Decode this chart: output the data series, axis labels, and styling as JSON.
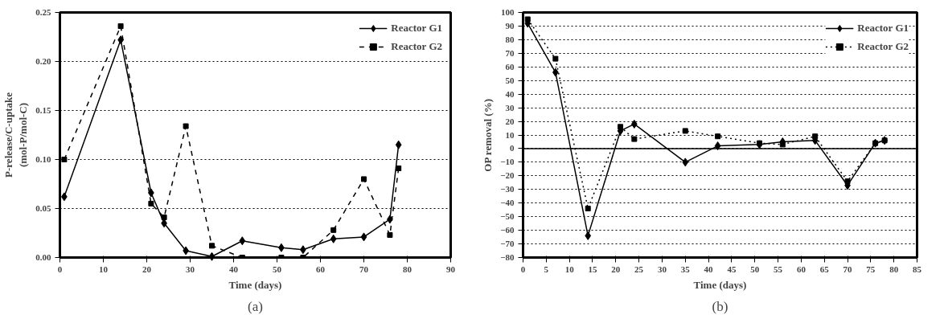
{
  "chart_data": [
    {
      "type": "line",
      "xlabel": "Time (days)",
      "ylabel": "P-release/C-uptake\n(mol-P/mol-C)",
      "annotations": [
        "(a)"
      ],
      "xlim": [
        0,
        90
      ],
      "xticks": [
        0,
        10,
        20,
        30,
        40,
        50,
        60,
        70,
        80,
        90
      ],
      "ylim": [
        0,
        0.25
      ],
      "yticks": [
        {
          "value": 0,
          "label": "0.00"
        },
        {
          "value": 0.05,
          "label": "0.05"
        },
        {
          "value": 0.1,
          "label": "0.10"
        },
        {
          "value": 0.15,
          "label": "0.15"
        },
        {
          "value": 0.2,
          "label": "0.20"
        },
        {
          "value": 0.25,
          "label": "0.25"
        }
      ],
      "grid": "y",
      "legend": "top right",
      "x": [
        1,
        14,
        21,
        24,
        29,
        35,
        42,
        51,
        56,
        63,
        70,
        76,
        78
      ],
      "series": [
        {
          "name": "Reactor G1",
          "color": "#000000",
          "marker": "diamond",
          "line_style": "solid",
          "values": [
            0.062,
            0.222,
            0.066,
            0.035,
            0.007,
            0.001,
            0.017,
            0.01,
            0.008,
            0.019,
            0.021,
            0.039,
            0.115
          ]
        },
        {
          "name": "Reactor G2",
          "color": "#000000",
          "marker": "square",
          "line_style": "dashed",
          "values": [
            0.1,
            0.236,
            0.055,
            0.041,
            0.134,
            0.012,
            0.0,
            0.0,
            0.0,
            0.028,
            0.08,
            0.023,
            0.091
          ]
        }
      ]
    },
    {
      "type": "line",
      "xlabel": "Time (days)",
      "ylabel": "OP removal (%)",
      "annotations": [
        "(b)"
      ],
      "xlim": [
        0,
        85
      ],
      "xticks": [
        0,
        5,
        10,
        15,
        20,
        25,
        30,
        35,
        40,
        45,
        50,
        55,
        60,
        65,
        70,
        75,
        80,
        85
      ],
      "ylim": [
        -80,
        100
      ],
      "yticks": [
        -80,
        -70,
        -60,
        -50,
        -40,
        -30,
        -20,
        -10,
        0,
        10,
        20,
        30,
        40,
        50,
        60,
        70,
        80,
        90,
        100
      ],
      "grid": "y",
      "legend": "top right",
      "x": [
        1,
        7,
        14,
        21,
        24,
        35,
        42,
        51,
        56,
        63,
        70,
        76,
        78
      ],
      "series": [
        {
          "name": "Reactor G1",
          "color": "#000000",
          "marker": "diamond",
          "line_style": "solid",
          "values": [
            92,
            56,
            -64,
            13,
            18,
            -10,
            2,
            3,
            5,
            6,
            -27,
            4,
            6
          ]
        },
        {
          "name": "Reactor G2",
          "color": "#000000",
          "marker": "square",
          "line_style": "dotted",
          "values": [
            95,
            66,
            -44,
            16,
            7,
            13,
            9,
            4,
            3,
            9,
            -24,
            4,
            6
          ]
        }
      ]
    }
  ]
}
